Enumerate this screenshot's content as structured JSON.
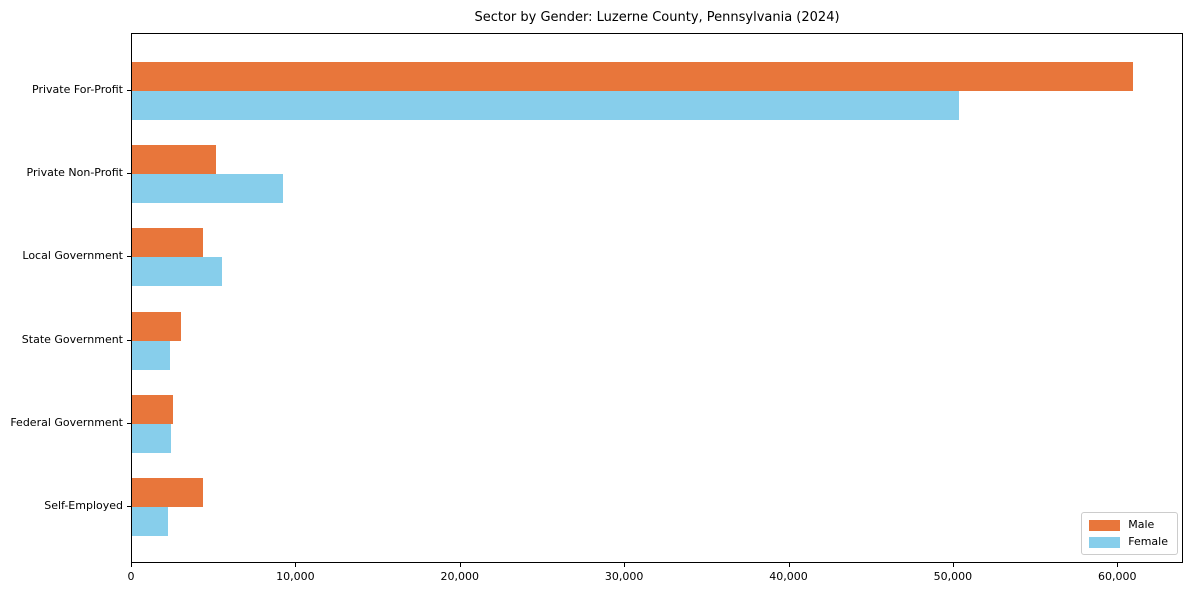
{
  "chart_data": {
    "type": "bar",
    "orientation": "horizontal",
    "title": "Sector by Gender: Luzerne County, Pennsylvania (2024)",
    "categories": [
      "Private For-Profit",
      "Private Non-Profit",
      "Local Government",
      "State Government",
      "Federal Government",
      "Self-Employed"
    ],
    "series": [
      {
        "name": "Male",
        "color": "#E8763B",
        "values": [
          61000,
          5100,
          4300,
          3000,
          2500,
          4300
        ]
      },
      {
        "name": "Female",
        "color": "#87CEEB",
        "values": [
          50400,
          9200,
          5500,
          2300,
          2400,
          2200
        ]
      }
    ],
    "xlabel": "",
    "ylabel": "",
    "xlim": [
      0,
      64000
    ],
    "x_ticks": [
      0,
      10000,
      20000,
      30000,
      40000,
      50000,
      60000
    ],
    "x_tick_labels": [
      "0",
      "10,000",
      "20,000",
      "30,000",
      "40,000",
      "50,000",
      "60,000"
    ],
    "grid": false,
    "legend_position": "lower right"
  }
}
